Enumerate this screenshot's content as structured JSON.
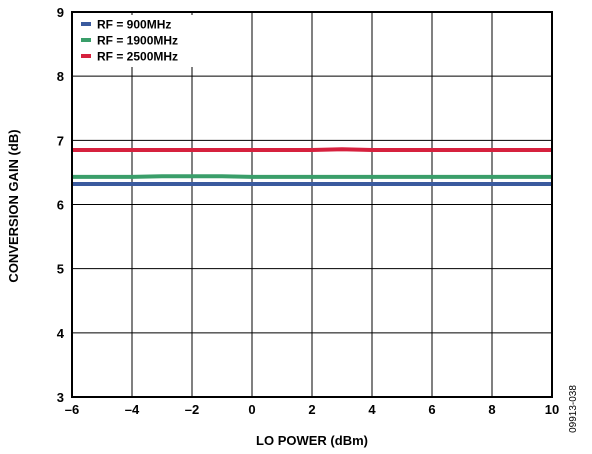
{
  "chart_data": {
    "type": "line",
    "xlabel": "LO POWER (dBm)",
    "ylabel": "CONVERSION GAIN (dB)",
    "xlim": [
      -6,
      10
    ],
    "ylim": [
      3,
      9
    ],
    "x_ticks": [
      -6,
      -4,
      -2,
      0,
      2,
      4,
      6,
      8,
      10
    ],
    "x_tick_labels": [
      "–6",
      "–4",
      "–2",
      "0",
      "2",
      "4",
      "6",
      "8",
      "10"
    ],
    "y_ticks": [
      3,
      4,
      5,
      6,
      7,
      8,
      9
    ],
    "y_tick_labels": [
      "3",
      "4",
      "5",
      "6",
      "7",
      "8",
      "9"
    ],
    "grid": true,
    "legend_position": "top-left",
    "series": [
      {
        "name": "RF = 900MHz",
        "color": "#3a5a9e",
        "x": [
          -6,
          -5,
          -4,
          -3,
          -2,
          -1,
          0,
          1,
          2,
          3,
          4,
          5,
          6,
          7,
          8,
          9,
          10
        ],
        "y": [
          6.32,
          6.32,
          6.32,
          6.32,
          6.32,
          6.32,
          6.32,
          6.32,
          6.32,
          6.32,
          6.32,
          6.32,
          6.32,
          6.32,
          6.32,
          6.32,
          6.32
        ]
      },
      {
        "name": "RF = 1900MHz",
        "color": "#3a9e6a",
        "x": [
          -6,
          -5,
          -4,
          -3,
          -2,
          -1,
          0,
          1,
          2,
          3,
          4,
          5,
          6,
          7,
          8,
          9,
          10
        ],
        "y": [
          6.43,
          6.43,
          6.43,
          6.44,
          6.44,
          6.44,
          6.43,
          6.43,
          6.43,
          6.43,
          6.43,
          6.43,
          6.43,
          6.43,
          6.43,
          6.43,
          6.43
        ]
      },
      {
        "name": "RF = 2500MHz",
        "color": "#d6213e",
        "x": [
          -6,
          -5,
          -4,
          -3,
          -2,
          -1,
          0,
          1,
          2,
          3,
          4,
          5,
          6,
          7,
          8,
          9,
          10
        ],
        "y": [
          6.85,
          6.85,
          6.85,
          6.85,
          6.85,
          6.85,
          6.85,
          6.85,
          6.85,
          6.86,
          6.85,
          6.85,
          6.85,
          6.85,
          6.85,
          6.85,
          6.85
        ]
      }
    ],
    "figure_id": "09913-038"
  }
}
